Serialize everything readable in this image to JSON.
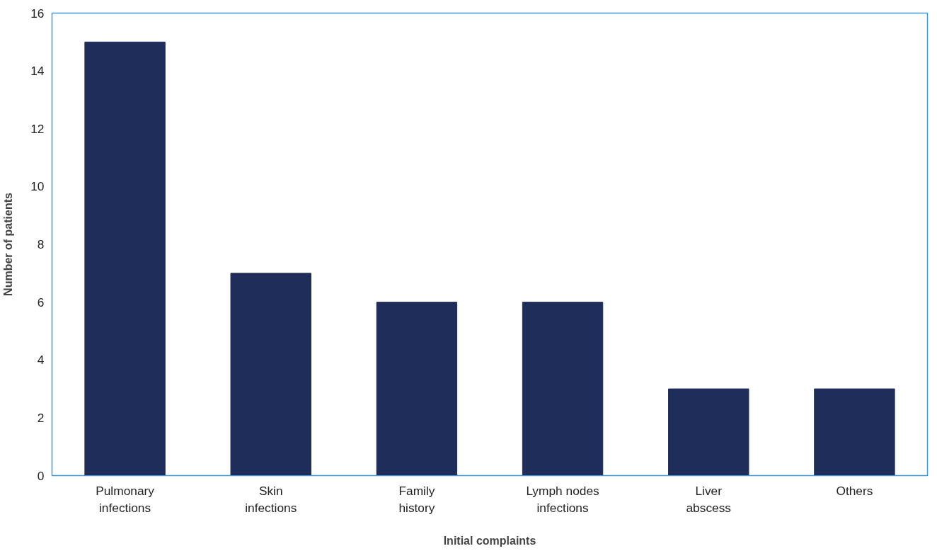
{
  "chart_data": {
    "type": "bar",
    "xlabel": "Initial complaints",
    "ylabel": "Number of patients",
    "categories": [
      "Pulmonary infections",
      "Skin infections",
      "Family history",
      "Lymph nodes infections",
      "Liver abscess",
      "Others"
    ],
    "values": [
      15,
      7,
      6,
      6,
      3,
      3
    ],
    "color": "#1e2d5a",
    "ylim": [
      0,
      16
    ],
    "yticks": [
      0,
      2,
      4,
      6,
      8,
      10,
      12,
      14,
      16
    ],
    "grid": false
  }
}
